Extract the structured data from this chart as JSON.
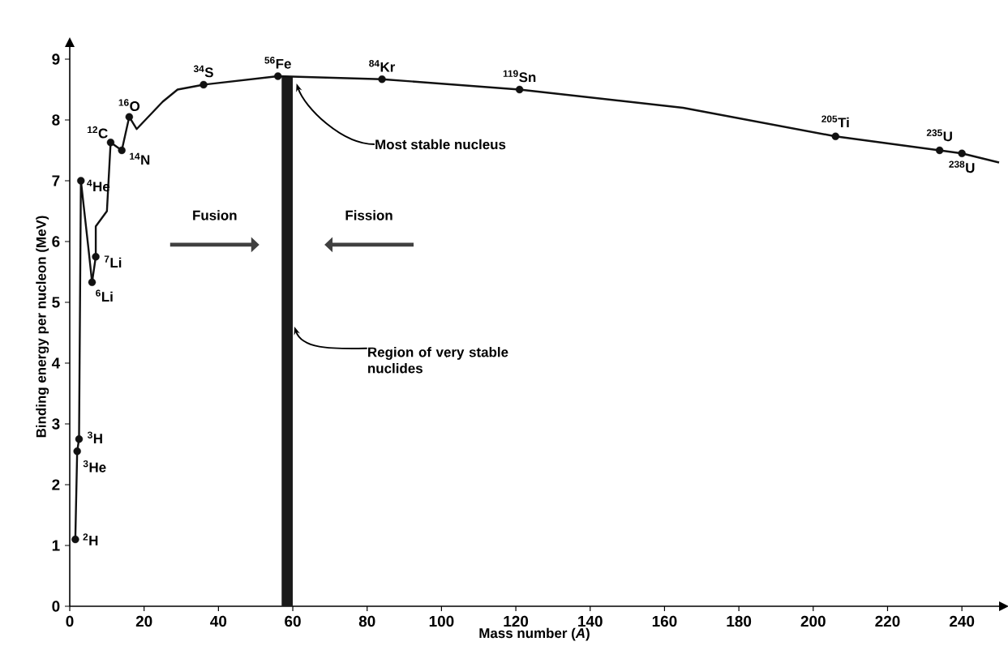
{
  "chart_data": {
    "type": "line",
    "xlabel": "Mass number (*A*)",
    "ylabel": "Binding energy per nucleon (MeV)",
    "xlim": [
      0,
      250
    ],
    "ylim": [
      0,
      9.2
    ],
    "xticks": [
      0,
      20,
      40,
      60,
      80,
      100,
      120,
      140,
      160,
      180,
      200,
      220,
      240
    ],
    "yticks": [
      0,
      1,
      2,
      3,
      4,
      5,
      6,
      7,
      8,
      9
    ],
    "grid": false,
    "series": [
      {
        "color": "#111111",
        "marker": "none",
        "x": [
          1.5,
          2,
          2.5,
          3,
          5,
          6,
          7,
          7,
          10,
          11,
          14,
          16,
          18,
          25,
          29,
          36,
          56,
          84,
          121,
          165,
          206,
          234,
          240,
          250
        ],
        "values": [
          1.1,
          2.55,
          2.75,
          7.0,
          5.9,
          5.33,
          5.75,
          6.25,
          6.5,
          7.63,
          7.5,
          8.05,
          7.85,
          8.3,
          8.5,
          8.58,
          8.72,
          8.67,
          8.5,
          8.2,
          7.73,
          7.5,
          7.45,
          7.3
        ]
      },
      {
        "type": "scatter",
        "color": "#111111",
        "marker": "circle",
        "x": [
          1.5,
          2,
          2.5,
          3,
          6,
          7,
          11,
          14,
          16,
          36,
          56,
          84,
          121,
          206,
          234,
          240
        ],
        "values": [
          1.1,
          2.55,
          2.75,
          7.0,
          5.33,
          5.75,
          7.63,
          7.5,
          8.05,
          8.58,
          8.72,
          8.67,
          8.5,
          7.73,
          7.5,
          7.45
        ]
      }
    ],
    "bands": [
      {
        "axis": "x",
        "from": 57,
        "to": 60,
        "color": "#1a1a1a",
        "label": "Region of very stable nuclides"
      }
    ],
    "annotations": [
      {
        "text": "$^{2}$H",
        "x": 1.5,
        "y": 1.1
      },
      {
        "text": "$^{3}$He",
        "x": 2,
        "y": 2.55
      },
      {
        "text": "$^{3}$H",
        "x": 2.5,
        "y": 2.75
      },
      {
        "text": "$^{4}$He",
        "x": 3,
        "y": 7.0
      },
      {
        "text": "$^{6}$Li",
        "x": 6,
        "y": 5.33
      },
      {
        "text": "$^{7}$Li",
        "x": 7,
        "y": 5.75
      },
      {
        "text": "$^{12}$C",
        "x": 11,
        "y": 7.63
      },
      {
        "text": "$^{14}$N",
        "x": 14,
        "y": 7.5
      },
      {
        "text": "$^{16}$O",
        "x": 16,
        "y": 8.05
      },
      {
        "text": "$^{34}$S",
        "x": 36,
        "y": 8.58
      },
      {
        "text": "$^{56}$Fe",
        "x": 56,
        "y": 8.72
      },
      {
        "text": "$^{84}$Kr",
        "x": 84,
        "y": 8.67
      },
      {
        "text": "$^{119}$Sn",
        "x": 121,
        "y": 8.5
      },
      {
        "text": "$^{205}$Ti",
        "x": 206,
        "y": 7.73
      },
      {
        "text": "$^{235}$U",
        "x": 234,
        "y": 7.5
      },
      {
        "text": "$^{238}$U",
        "x": 240,
        "y": 7.45
      },
      {
        "text": "Most stable nucleus",
        "x": 61,
        "y": 8.6
      },
      "Fusion",
      "Fission"
    ]
  }
}
